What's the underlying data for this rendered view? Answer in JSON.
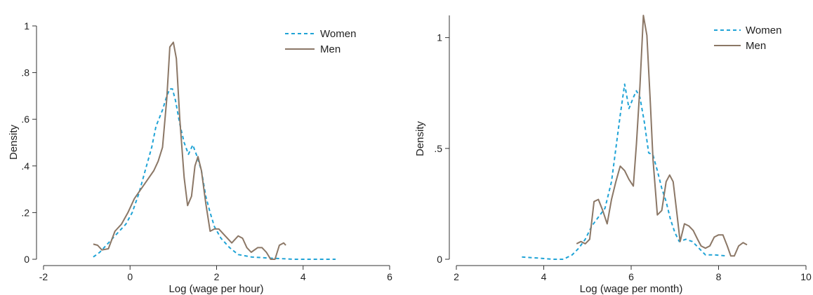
{
  "charts": [
    {
      "type": "line",
      "xlabel": "Log (wage per hour)",
      "ylabel": "Density",
      "xlim": [
        -2,
        6
      ],
      "ylim": [
        0,
        1.0
      ],
      "xticks": [
        -2,
        0,
        2,
        4,
        6
      ],
      "xtick_labels": [
        "-2",
        "0",
        "2",
        "4",
        "6"
      ],
      "yticks": [
        0,
        0.2,
        0.4,
        0.6,
        0.8,
        1.0
      ],
      "ytick_labels": [
        "0",
        ".2",
        ".4",
        ".6",
        ".8",
        "1"
      ],
      "legend_position": "top-right",
      "grid": false,
      "series": [
        {
          "name": "Women",
          "color": "#1fa3d6",
          "style": "dashed",
          "points": [
            [
              -0.85,
              0.01
            ],
            [
              -0.7,
              0.03
            ],
            [
              -0.55,
              0.06
            ],
            [
              -0.4,
              0.09
            ],
            [
              -0.25,
              0.12
            ],
            [
              -0.1,
              0.15
            ],
            [
              0.05,
              0.2
            ],
            [
              0.2,
              0.28
            ],
            [
              0.35,
              0.38
            ],
            [
              0.5,
              0.48
            ],
            [
              0.6,
              0.57
            ],
            [
              0.75,
              0.64
            ],
            [
              0.85,
              0.7
            ],
            [
              0.92,
              0.73
            ],
            [
              0.98,
              0.73
            ],
            [
              1.05,
              0.68
            ],
            [
              1.15,
              0.58
            ],
            [
              1.25,
              0.5
            ],
            [
              1.35,
              0.45
            ],
            [
              1.45,
              0.49
            ],
            [
              1.55,
              0.44
            ],
            [
              1.65,
              0.38
            ],
            [
              1.75,
              0.27
            ],
            [
              1.85,
              0.2
            ],
            [
              1.95,
              0.14
            ],
            [
              2.1,
              0.09
            ],
            [
              2.3,
              0.05
            ],
            [
              2.5,
              0.02
            ],
            [
              2.8,
              0.01
            ],
            [
              3.2,
              0.005
            ],
            [
              3.8,
              0.0
            ],
            [
              4.3,
              0.0
            ],
            [
              4.75,
              0.0
            ]
          ]
        },
        {
          "name": "Men",
          "color": "#8b7766",
          "style": "solid",
          "points": [
            [
              -0.85,
              0.065
            ],
            [
              -0.75,
              0.06
            ],
            [
              -0.65,
              0.04
            ],
            [
              -0.5,
              0.045
            ],
            [
              -0.35,
              0.12
            ],
            [
              -0.2,
              0.15
            ],
            [
              -0.05,
              0.2
            ],
            [
              0.1,
              0.26
            ],
            [
              0.25,
              0.3
            ],
            [
              0.4,
              0.34
            ],
            [
              0.55,
              0.38
            ],
            [
              0.65,
              0.42
            ],
            [
              0.75,
              0.48
            ],
            [
              0.85,
              0.69
            ],
            [
              0.92,
              0.91
            ],
            [
              1.0,
              0.93
            ],
            [
              1.07,
              0.86
            ],
            [
              1.15,
              0.6
            ],
            [
              1.25,
              0.35
            ],
            [
              1.33,
              0.23
            ],
            [
              1.42,
              0.27
            ],
            [
              1.5,
              0.4
            ],
            [
              1.57,
              0.44
            ],
            [
              1.65,
              0.38
            ],
            [
              1.75,
              0.24
            ],
            [
              1.85,
              0.12
            ],
            [
              1.95,
              0.13
            ],
            [
              2.05,
              0.13
            ],
            [
              2.2,
              0.1
            ],
            [
              2.35,
              0.07
            ],
            [
              2.5,
              0.1
            ],
            [
              2.6,
              0.09
            ],
            [
              2.7,
              0.05
            ],
            [
              2.8,
              0.03
            ],
            [
              2.95,
              0.05
            ],
            [
              3.05,
              0.05
            ],
            [
              3.15,
              0.03
            ],
            [
              3.25,
              0.0
            ],
            [
              3.35,
              0.0
            ],
            [
              3.45,
              0.06
            ],
            [
              3.55,
              0.07
            ],
            [
              3.6,
              0.06
            ]
          ]
        }
      ]
    },
    {
      "type": "line",
      "xlabel": "Log (wage per month)",
      "ylabel": "Density",
      "xlim": [
        2,
        10
      ],
      "ylim": [
        0,
        1.1
      ],
      "xticks": [
        2,
        4,
        6,
        8,
        10
      ],
      "xtick_labels": [
        "2",
        "4",
        "6",
        "8",
        "10"
      ],
      "yticks": [
        0,
        0.5,
        1.0
      ],
      "ytick_labels": [
        "0",
        ".5",
        "1"
      ],
      "legend_position": "top-right",
      "grid": false,
      "series": [
        {
          "name": "Women",
          "color": "#1fa3d6",
          "style": "dashed",
          "points": [
            [
              3.5,
              0.01
            ],
            [
              3.9,
              0.005
            ],
            [
              4.2,
              0.0
            ],
            [
              4.45,
              0.0
            ],
            [
              4.65,
              0.02
            ],
            [
              4.8,
              0.05
            ],
            [
              4.95,
              0.09
            ],
            [
              5.1,
              0.15
            ],
            [
              5.25,
              0.19
            ],
            [
              5.4,
              0.23
            ],
            [
              5.55,
              0.35
            ],
            [
              5.65,
              0.5
            ],
            [
              5.75,
              0.65
            ],
            [
              5.85,
              0.79
            ],
            [
              5.95,
              0.68
            ],
            [
              6.05,
              0.73
            ],
            [
              6.12,
              0.76
            ],
            [
              6.2,
              0.73
            ],
            [
              6.3,
              0.62
            ],
            [
              6.4,
              0.48
            ],
            [
              6.5,
              0.47
            ],
            [
              6.6,
              0.4
            ],
            [
              6.7,
              0.32
            ],
            [
              6.8,
              0.26
            ],
            [
              6.9,
              0.18
            ],
            [
              7.0,
              0.12
            ],
            [
              7.1,
              0.08
            ],
            [
              7.25,
              0.09
            ],
            [
              7.4,
              0.08
            ],
            [
              7.55,
              0.05
            ],
            [
              7.7,
              0.02
            ],
            [
              7.9,
              0.02
            ],
            [
              8.2,
              0.015
            ]
          ]
        },
        {
          "name": "Men",
          "color": "#8b7766",
          "style": "solid",
          "points": [
            [
              4.75,
              0.07
            ],
            [
              4.85,
              0.08
            ],
            [
              4.95,
              0.07
            ],
            [
              5.05,
              0.09
            ],
            [
              5.15,
              0.26
            ],
            [
              5.25,
              0.27
            ],
            [
              5.35,
              0.22
            ],
            [
              5.45,
              0.16
            ],
            [
              5.55,
              0.27
            ],
            [
              5.65,
              0.35
            ],
            [
              5.75,
              0.42
            ],
            [
              5.85,
              0.4
            ],
            [
              5.95,
              0.36
            ],
            [
              6.05,
              0.33
            ],
            [
              6.12,
              0.52
            ],
            [
              6.2,
              0.78
            ],
            [
              6.28,
              1.1
            ],
            [
              6.36,
              1.01
            ],
            [
              6.44,
              0.7
            ],
            [
              6.5,
              0.45
            ],
            [
              6.6,
              0.2
            ],
            [
              6.7,
              0.22
            ],
            [
              6.8,
              0.35
            ],
            [
              6.88,
              0.38
            ],
            [
              6.96,
              0.35
            ],
            [
              7.05,
              0.2
            ],
            [
              7.12,
              0.08
            ],
            [
              7.22,
              0.16
            ],
            [
              7.32,
              0.15
            ],
            [
              7.42,
              0.13
            ],
            [
              7.52,
              0.09
            ],
            [
              7.6,
              0.06
            ],
            [
              7.7,
              0.05
            ],
            [
              7.8,
              0.06
            ],
            [
              7.9,
              0.1
            ],
            [
              8.0,
              0.11
            ],
            [
              8.1,
              0.11
            ],
            [
              8.2,
              0.06
            ],
            [
              8.28,
              0.015
            ],
            [
              8.36,
              0.015
            ],
            [
              8.46,
              0.06
            ],
            [
              8.56,
              0.075
            ],
            [
              8.65,
              0.065
            ]
          ]
        }
      ]
    }
  ]
}
